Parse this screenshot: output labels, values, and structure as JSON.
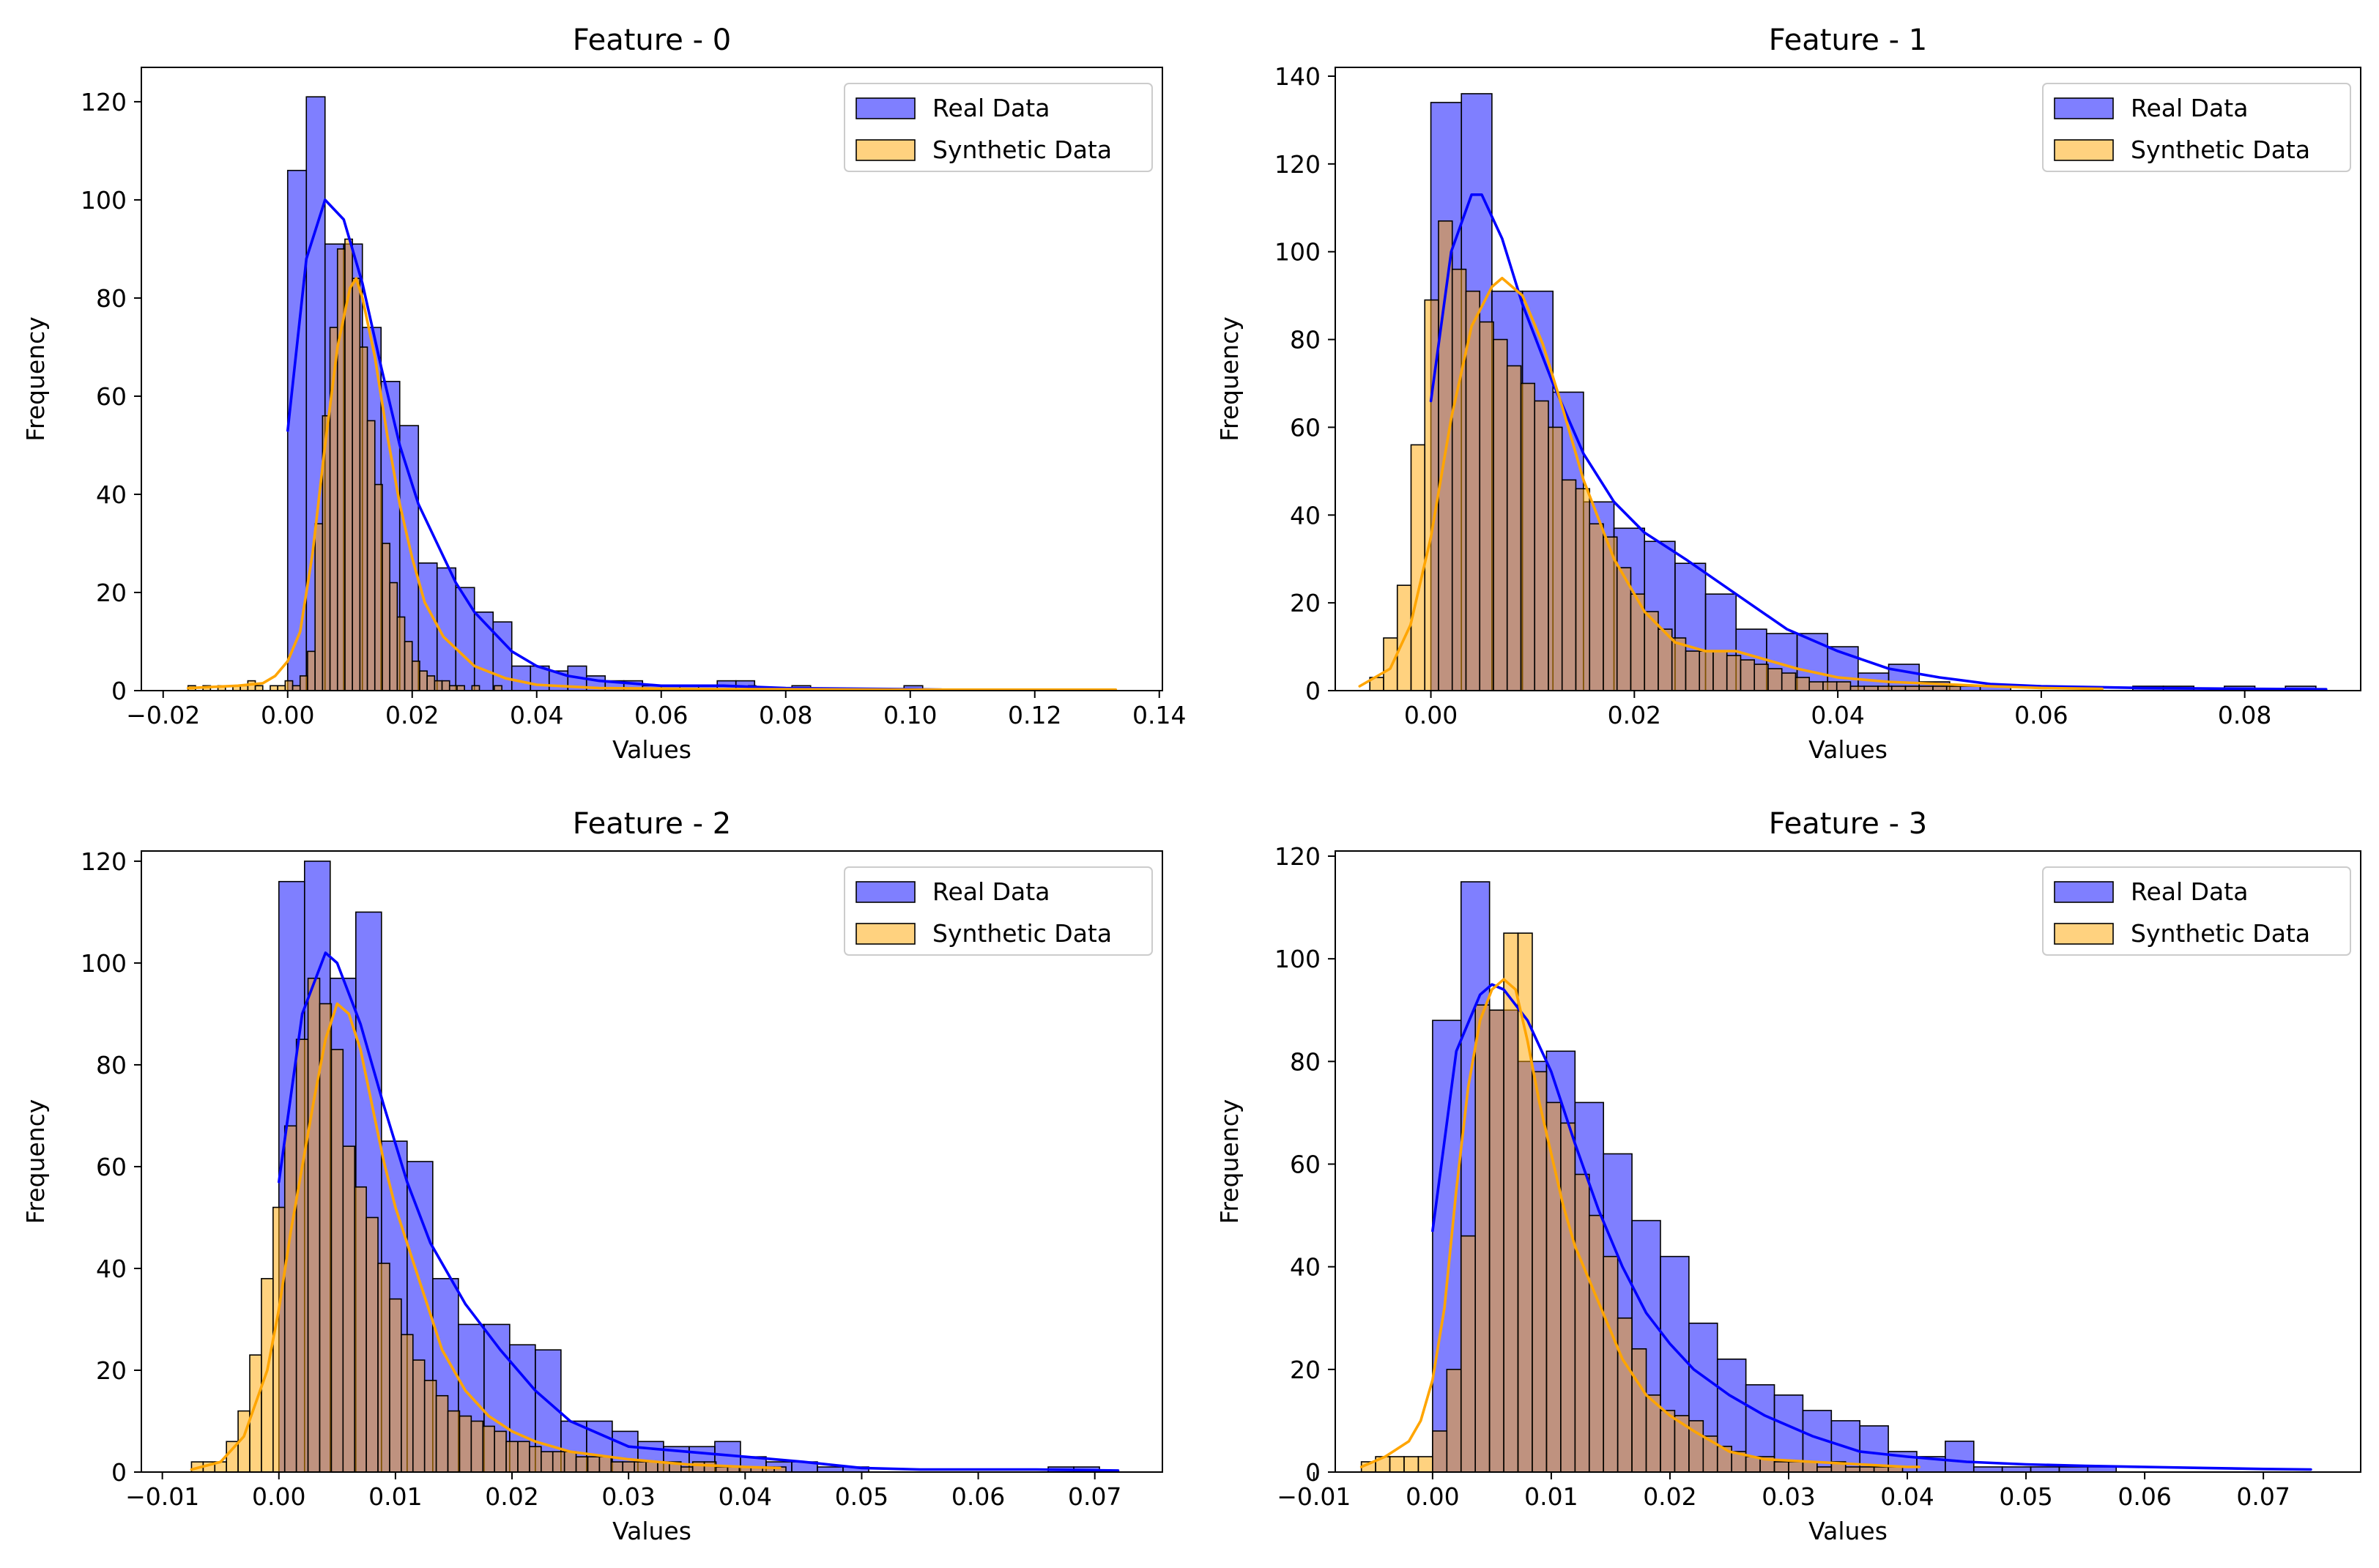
{
  "legend_labels": {
    "real": "Real Data",
    "synthetic": "Synthetic Data"
  },
  "colors": {
    "real": "#0000ff",
    "synthetic": "#ffa500",
    "edge": "#000000"
  },
  "chart_data": [
    {
      "type": "histogram",
      "title": "Feature - 0",
      "xlabel": "Values",
      "ylabel": "Frequency",
      "xlim": [
        -0.0235,
        0.1405
      ],
      "ylim": [
        0,
        127
      ],
      "xticks": [
        -0.02,
        0.0,
        0.02,
        0.04,
        0.06,
        0.08,
        0.1,
        0.12,
        0.14
      ],
      "xtick_labels": [
        "−0.02",
        "0.00",
        "0.02",
        "0.04",
        "0.06",
        "0.08",
        "0.10",
        "0.12",
        "0.14"
      ],
      "yticks": [
        0,
        20,
        40,
        60,
        80,
        100,
        120
      ],
      "ytick_labels": [
        "0",
        "20",
        "40",
        "60",
        "80",
        "100",
        "120"
      ],
      "legend_position": "upper right",
      "series": [
        {
          "name": "Real Data",
          "bin_start": 0.0,
          "bin_width": 0.003,
          "values": [
            106,
            121,
            91,
            91,
            74,
            63,
            54,
            26,
            25,
            21,
            16,
            14,
            5,
            5,
            4,
            5,
            3,
            2,
            2,
            1,
            1,
            1,
            1,
            2,
            2,
            0,
            0,
            1,
            0,
            0,
            0,
            0,
            0,
            1,
            0
          ],
          "kde_x": [
            0.0,
            0.003,
            0.006,
            0.009,
            0.012,
            0.015,
            0.018,
            0.021,
            0.024,
            0.027,
            0.03,
            0.033,
            0.036,
            0.04,
            0.045,
            0.05,
            0.06,
            0.07,
            0.08,
            0.1,
            0.105
          ],
          "kde_y": [
            53,
            88,
            100,
            96,
            83,
            66,
            50,
            38,
            30,
            22,
            16,
            12,
            8,
            5,
            3,
            2,
            1,
            1,
            0.5,
            0.3,
            0.2
          ]
        },
        {
          "name": "Synthetic Data",
          "bin_start": -0.016,
          "bin_width": 0.0012,
          "values": [
            1,
            0,
            1,
            0,
            1,
            0,
            1,
            1,
            2,
            1,
            0,
            1,
            1,
            2,
            1,
            3,
            8,
            34,
            56,
            74,
            90,
            92,
            84,
            70,
            55,
            42,
            30,
            22,
            15,
            10,
            6,
            4,
            3,
            2,
            2,
            1,
            1,
            0,
            1,
            0,
            0,
            1,
            0,
            0,
            0,
            0,
            0,
            0,
            0,
            0,
            0,
            0,
            0,
            0,
            0,
            0,
            0,
            0,
            0,
            0,
            0,
            0,
            0,
            0,
            0,
            0,
            0,
            0,
            0,
            0,
            0,
            0,
            0,
            0,
            0,
            1
          ],
          "kde_x": [
            -0.016,
            -0.008,
            -0.004,
            -0.002,
            0.0,
            0.002,
            0.004,
            0.006,
            0.008,
            0.01,
            0.011,
            0.012,
            0.014,
            0.016,
            0.018,
            0.02,
            0.022,
            0.025,
            0.03,
            0.035,
            0.04,
            0.05,
            0.07,
            0.1,
            0.133
          ],
          "kde_y": [
            0.5,
            1,
            1.5,
            3,
            6,
            12,
            28,
            50,
            70,
            82,
            84,
            80,
            68,
            52,
            38,
            27,
            18,
            11,
            5,
            2.5,
            1.2,
            0.5,
            0.3,
            0.2,
            0.2
          ]
        }
      ]
    },
    {
      "type": "histogram",
      "title": "Feature - 1",
      "xlabel": "Values",
      "ylabel": "Frequency",
      "xlim": [
        -0.0094,
        0.0914
      ],
      "ylim": [
        0,
        142
      ],
      "xticks": [
        0.0,
        0.02,
        0.04,
        0.06,
        0.08
      ],
      "xtick_labels": [
        "0.00",
        "0.02",
        "0.04",
        "0.06",
        "0.08"
      ],
      "yticks": [
        0,
        20,
        40,
        60,
        80,
        100,
        120,
        140
      ],
      "ytick_labels": [
        "0",
        "20",
        "40",
        "60",
        "80",
        "100",
        "120",
        "140"
      ],
      "legend_position": "upper right",
      "series": [
        {
          "name": "Real Data",
          "bin_start": 0.0,
          "bin_width": 0.003,
          "values": [
            134,
            136,
            91,
            91,
            68,
            43,
            37,
            34,
            29,
            22,
            14,
            13,
            13,
            10,
            4,
            6,
            2,
            1,
            1,
            0,
            0,
            0,
            0,
            1,
            1,
            0,
            1,
            0,
            1
          ],
          "kde_x": [
            0.0,
            0.002,
            0.004,
            0.005,
            0.007,
            0.009,
            0.012,
            0.015,
            0.018,
            0.021,
            0.025,
            0.03,
            0.035,
            0.04,
            0.045,
            0.05,
            0.055,
            0.06,
            0.07,
            0.08,
            0.088
          ],
          "kde_y": [
            66,
            100,
            113,
            113,
            103,
            88,
            70,
            54,
            43,
            36,
            30,
            22,
            14,
            9,
            5,
            3,
            1.5,
            1,
            0.6,
            0.4,
            0.3
          ]
        },
        {
          "name": "Synthetic Data",
          "bin_start": -0.006,
          "bin_width": 0.00135,
          "values": [
            3,
            12,
            24,
            56,
            89,
            107,
            96,
            91,
            84,
            80,
            74,
            70,
            66,
            60,
            48,
            46,
            38,
            35,
            28,
            22,
            18,
            14,
            12,
            9,
            9,
            9,
            8,
            7,
            6,
            5,
            4,
            3,
            2,
            2,
            2,
            1,
            1,
            1,
            1,
            1,
            1,
            1,
            1,
            0,
            0,
            0,
            0,
            0,
            0,
            0,
            0,
            0,
            0
          ],
          "kde_x": [
            -0.007,
            -0.004,
            -0.002,
            0.0,
            0.002,
            0.004,
            0.006,
            0.007,
            0.009,
            0.011,
            0.013,
            0.015,
            0.018,
            0.021,
            0.024,
            0.027,
            0.03,
            0.033,
            0.036,
            0.04,
            0.045,
            0.05,
            0.055,
            0.06,
            0.066
          ],
          "kde_y": [
            1,
            5,
            15,
            35,
            62,
            83,
            92,
            94,
            90,
            79,
            64,
            48,
            30,
            18,
            11,
            9,
            9,
            7,
            5,
            3,
            2,
            1.5,
            1,
            0.6,
            0.4
          ]
        }
      ]
    },
    {
      "type": "histogram",
      "title": "Feature - 2",
      "xlabel": "Values",
      "ylabel": "Frequency",
      "xlim": [
        -0.0118,
        0.0758
      ],
      "ylim": [
        0,
        122
      ],
      "xticks": [
        -0.01,
        0.0,
        0.01,
        0.02,
        0.03,
        0.04,
        0.05,
        0.06,
        0.07
      ],
      "xtick_labels": [
        "−0.01",
        "0.00",
        "0.01",
        "0.02",
        "0.03",
        "0.04",
        "0.05",
        "0.06",
        "0.07"
      ],
      "yticks": [
        0,
        20,
        40,
        60,
        80,
        100,
        120
      ],
      "ytick_labels": [
        "0",
        "20",
        "40",
        "60",
        "80",
        "100",
        "120"
      ],
      "legend_position": "upper right",
      "series": [
        {
          "name": "Real Data",
          "bin_start": 0.0,
          "bin_width": 0.0022,
          "values": [
            116,
            120,
            97,
            110,
            65,
            61,
            38,
            29,
            29,
            25,
            24,
            10,
            10,
            8,
            6,
            5,
            5,
            6,
            3,
            2,
            2,
            1,
            1,
            0,
            0,
            0,
            0,
            0,
            0,
            0,
            1,
            1,
            0,
            0,
            0,
            1,
            0,
            0,
            0,
            0,
            0,
            0,
            0,
            0,
            0,
            0,
            0,
            0,
            0,
            0,
            0,
            1,
            1
          ],
          "kde_x": [
            0.0,
            0.002,
            0.004,
            0.005,
            0.007,
            0.009,
            0.011,
            0.013,
            0.016,
            0.019,
            0.022,
            0.025,
            0.028,
            0.03,
            0.035,
            0.04,
            0.045,
            0.05,
            0.055,
            0.06,
            0.065,
            0.072
          ],
          "kde_y": [
            57,
            90,
            102,
            100,
            88,
            72,
            57,
            45,
            33,
            24,
            16,
            10,
            7,
            5,
            4,
            3,
            2,
            0.8,
            0.5,
            0.5,
            0.5,
            0.3
          ]
        },
        {
          "name": "Synthetic Data",
          "bin_start": -0.0075,
          "bin_width": 0.001,
          "values": [
            2,
            2,
            2,
            6,
            12,
            23,
            38,
            52,
            68,
            85,
            97,
            92,
            83,
            64,
            56,
            50,
            41,
            34,
            27,
            22,
            18,
            15,
            12,
            11,
            10,
            9,
            8,
            6,
            6,
            5,
            4,
            4,
            4,
            3,
            3,
            3,
            2,
            2,
            2,
            2,
            2,
            2,
            1,
            2,
            2,
            1,
            1,
            1,
            1,
            1,
            1
          ],
          "kde_x": [
            -0.0075,
            -0.005,
            -0.003,
            -0.001,
            0.0,
            0.001,
            0.002,
            0.003,
            0.004,
            0.005,
            0.006,
            0.007,
            0.008,
            0.009,
            0.01,
            0.012,
            0.014,
            0.016,
            0.018,
            0.02,
            0.022,
            0.025,
            0.03,
            0.035,
            0.04,
            0.043
          ],
          "kde_y": [
            0.5,
            2,
            7,
            20,
            32,
            47,
            60,
            73,
            85,
            92,
            90,
            83,
            72,
            61,
            52,
            38,
            24,
            16,
            11,
            8,
            6,
            4,
            2.5,
            1.5,
            1,
            0.8
          ]
        }
      ]
    },
    {
      "type": "histogram",
      "title": "Feature - 3",
      "xlabel": "Values",
      "ylabel": "Frequency",
      "xlim": [
        -0.0082,
        0.0782
      ],
      "ylim": [
        0,
        121
      ],
      "xticks": [
        -0.01,
        0.0,
        0.01,
        0.02,
        0.03,
        0.04,
        0.05,
        0.06,
        0.07
      ],
      "xtick_labels": [
        "−0.01",
        "0.00",
        "0.01",
        "0.02",
        "0.03",
        "0.04",
        "0.05",
        "0.06",
        "0.07"
      ],
      "yticks": [
        0,
        20,
        40,
        60,
        80,
        100,
        120
      ],
      "ytick_labels": [
        "0",
        "20",
        "40",
        "60",
        "80",
        "100",
        "120"
      ],
      "legend_position": "upper right",
      "series": [
        {
          "name": "Real Data",
          "bin_start": 0.0,
          "bin_width": 0.0024,
          "values": [
            88,
            115,
            90,
            80,
            82,
            72,
            62,
            49,
            42,
            29,
            22,
            17,
            15,
            12,
            10,
            9,
            4,
            3,
            6,
            1,
            1,
            1,
            1,
            1,
            0,
            0,
            0,
            0,
            0,
            0,
            0,
            0,
            0,
            0,
            0,
            1
          ],
          "kde_x": [
            0.0,
            0.002,
            0.004,
            0.005,
            0.006,
            0.008,
            0.01,
            0.012,
            0.014,
            0.016,
            0.018,
            0.02,
            0.022,
            0.025,
            0.028,
            0.032,
            0.036,
            0.04,
            0.045,
            0.05,
            0.055,
            0.06,
            0.065,
            0.07,
            0.074
          ],
          "kde_y": [
            47,
            82,
            93,
            95,
            94,
            88,
            78,
            64,
            51,
            40,
            31,
            25,
            20,
            15,
            11,
            7,
            4,
            3,
            2,
            1.5,
            1.2,
            1,
            0.8,
            0.6,
            0.5
          ]
        },
        {
          "name": "Synthetic Data",
          "bin_start": -0.006,
          "bin_width": 0.0012,
          "values": [
            2,
            3,
            3,
            3,
            3,
            8,
            20,
            46,
            91,
            90,
            105,
            105,
            78,
            72,
            68,
            58,
            50,
            42,
            30,
            24,
            15,
            12,
            11,
            10,
            7,
            5,
            4,
            3,
            3,
            2,
            2,
            2,
            1,
            2,
            1,
            1,
            1,
            1
          ],
          "kde_x": [
            -0.006,
            -0.004,
            -0.002,
            -0.001,
            0.0,
            0.001,
            0.002,
            0.003,
            0.004,
            0.005,
            0.006,
            0.007,
            0.008,
            0.009,
            0.01,
            0.011,
            0.012,
            0.014,
            0.016,
            0.018,
            0.02,
            0.022,
            0.025,
            0.028,
            0.032,
            0.036,
            0.04,
            0.041
          ],
          "kde_y": [
            1,
            3,
            6,
            10,
            18,
            32,
            55,
            75,
            88,
            94,
            96,
            94,
            84,
            72,
            62,
            52,
            44,
            33,
            22,
            15,
            11,
            8,
            4,
            2.5,
            2,
            1.5,
            1,
            1
          ]
        }
      ]
    }
  ]
}
